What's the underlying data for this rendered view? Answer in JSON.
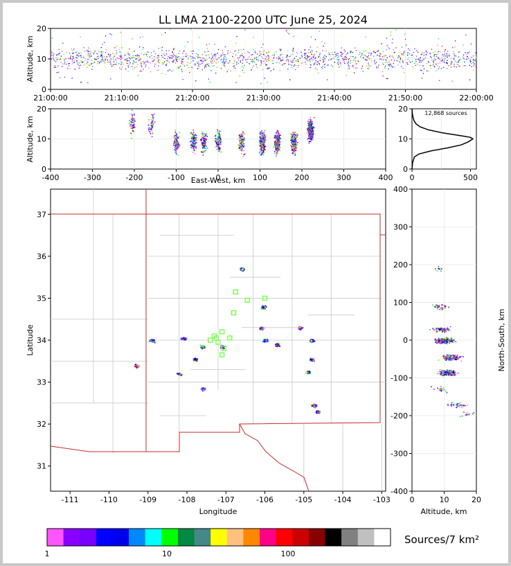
{
  "chart_data": [
    {
      "type": "scatter",
      "panel": "altitude-time",
      "title": "LL LMA 2100-2200 UTC June 25, 2024",
      "ylabel": "Altitude, km",
      "ylim": [
        0,
        20
      ],
      "xticks": [
        "21:00:00",
        "21:10:00",
        "21:20:00",
        "21:30:00",
        "21:40:00",
        "21:50:00",
        "22:00:00"
      ],
      "yticks": [
        0,
        10,
        20
      ],
      "x_range_minutes": [
        0,
        60
      ]
    },
    {
      "type": "scatter",
      "panel": "altitude-eastwest",
      "xlabel": "East-West, km",
      "ylabel": "Altitude, km",
      "xlim": [
        -400,
        400
      ],
      "ylim": [
        0,
        20
      ],
      "xticks": [
        -400,
        -300,
        -200,
        -100,
        0,
        100,
        200,
        300,
        400
      ],
      "yticks": [
        0,
        10,
        20
      ],
      "clusters_x_km": [
        -205,
        -160,
        -100,
        -60,
        -35,
        0,
        55,
        105,
        140,
        180,
        220
      ]
    },
    {
      "type": "line",
      "panel": "altitude-histogram",
      "annotation": "12,868 sources",
      "xlim": [
        0,
        550
      ],
      "ylim": [
        0,
        20
      ],
      "xticks": [
        0,
        500
      ],
      "yticks": [
        0,
        10,
        20
      ],
      "profile": {
        "altitude_km": [
          0,
          2,
          4,
          5,
          6,
          7,
          8,
          9,
          10,
          10.5,
          11,
          12,
          13,
          14,
          15,
          16,
          17,
          18,
          19,
          20
        ],
        "count": [
          0,
          5,
          20,
          60,
          160,
          300,
          420,
          480,
          520,
          500,
          430,
          260,
          140,
          70,
          35,
          18,
          10,
          5,
          2,
          0
        ]
      }
    },
    {
      "type": "scatter",
      "panel": "plan-view",
      "xlabel": "Longitude",
      "ylabel": "Latitude",
      "xlim": [
        -111.5,
        -102.9
      ],
      "ylim": [
        30.4,
        37.6
      ],
      "xticks": [
        -111,
        -110,
        -109,
        -108,
        -107,
        -106,
        -105,
        -104,
        -103
      ],
      "yticks": [
        31,
        32,
        33,
        34,
        35,
        36,
        37
      ],
      "stations": [
        [
          -107.3,
          34.1
        ],
        [
          -107.1,
          34.2
        ],
        [
          -106.9,
          34.05
        ],
        [
          -107.2,
          33.95
        ],
        [
          -107.05,
          33.8
        ],
        [
          -107.1,
          33.65
        ],
        [
          -106.8,
          34.65
        ],
        [
          -106.75,
          35.15
        ],
        [
          -106.45,
          34.95
        ],
        [
          -106.0,
          35.0
        ],
        [
          -107.4,
          34.0
        ],
        [
          -107.25,
          34.05
        ]
      ],
      "clusters": [
        [
          -106.6,
          35.7
        ],
        [
          -106.05,
          34.8
        ],
        [
          -106.0,
          34.0
        ],
        [
          -106.1,
          34.3
        ],
        [
          -105.7,
          33.9
        ],
        [
          -105.1,
          34.3
        ],
        [
          -104.8,
          34.0
        ],
        [
          -104.8,
          33.55
        ],
        [
          -104.9,
          33.25
        ],
        [
          -104.75,
          32.45
        ],
        [
          -104.65,
          32.3
        ],
        [
          -107.6,
          33.85
        ],
        [
          -107.1,
          33.85
        ],
        [
          -108.2,
          33.2
        ],
        [
          -107.8,
          33.55
        ],
        [
          -109.3,
          33.4
        ],
        [
          -108.9,
          34.0
        ],
        [
          -108.1,
          34.05
        ],
        [
          -107.6,
          32.85
        ]
      ]
    },
    {
      "type": "scatter",
      "panel": "northsouth-altitude",
      "xlabel": "Altitude, km",
      "ylabel": "North-South, km",
      "xlim": [
        0,
        20
      ],
      "ylim": [
        -400,
        400
      ],
      "xticks": [
        0,
        10,
        20
      ],
      "yticks": [
        -400,
        -300,
        -200,
        -100,
        0,
        100,
        200,
        300,
        400
      ]
    },
    {
      "type": "colorbar",
      "label": "Sources/7 km²",
      "ticks": [
        "1",
        "10",
        "100"
      ],
      "colors": [
        "#ff55ff",
        "#8800ff",
        "#7700ff",
        "#0000ff",
        "#0000ee",
        "#0088ff",
        "#00ffff",
        "#00ff00",
        "#008844",
        "#448888",
        "#ffff00",
        "#ffc080",
        "#ff8800",
        "#ff0088",
        "#ff0000",
        "#cc0000",
        "#880000",
        "#000000",
        "#808080",
        "#c0c0c0",
        "#ffffff"
      ]
    }
  ]
}
